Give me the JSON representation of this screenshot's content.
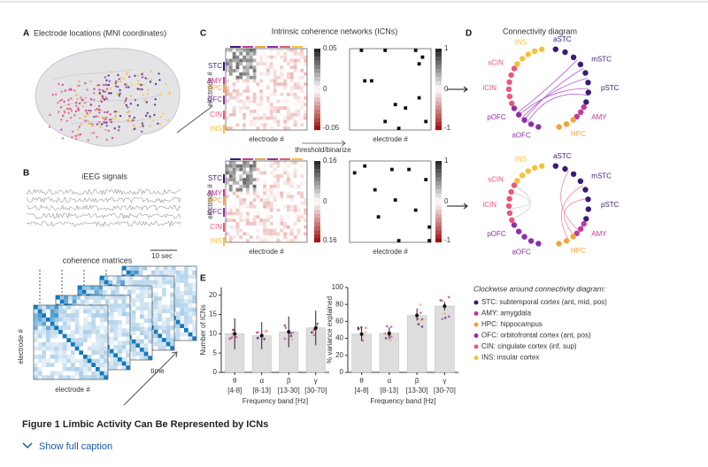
{
  "figure": {
    "panels": {
      "A": {
        "label": "A",
        "title": "Electrode locations (MNI coordinates)"
      },
      "B": {
        "label": "B",
        "title": "iEEG signals",
        "scale": "10 sec",
        "subtitle": "coherence matrices",
        "xlabel": "electrode #",
        "ylabel": "electrode #",
        "time": "time"
      },
      "C": {
        "label": "C",
        "title": "Intrinsic coherence networks (ICNs)",
        "regions": [
          "STC",
          "AMY",
          "HPC",
          "OFC",
          "CIN",
          "INS"
        ],
        "ylabel": "electrode #",
        "xlabel": "electrode #",
        "arrow_label": "threshold/binarize",
        "colorbar_top": [
          "0.05",
          "0",
          "-0.05"
        ],
        "colorbar_bin": [
          "1",
          "0",
          "-1"
        ],
        "colorbar_bottom": [
          "0.16",
          "0",
          "0.16"
        ]
      },
      "D": {
        "label": "D",
        "title": "Connectivity diagram",
        "nodes": [
          "aSTC",
          "mSTC",
          "pSTC",
          "AMY",
          "HPC",
          "aOFC",
          "pOFC",
          "iCIN",
          "sCIN",
          "INS"
        ]
      },
      "E": {
        "label": "E",
        "legend_title": "Clockwise around connectivity diagram:",
        "legend": [
          {
            "text": "STC: subtemporal cortex (ant, mid, pos)",
            "color": "#3b1a78"
          },
          {
            "text": "AMY: amygdala",
            "color": "#c2399b"
          },
          {
            "text": "HPC: hippocampus",
            "color": "#f2a33a"
          },
          {
            "text": "OFC: orbitofrontal cortex (ant, pos)",
            "color": "#8e2fa8"
          },
          {
            "text": "CIN: cingulate cortex (inf, sup)",
            "color": "#e8587a"
          },
          {
            "text": "INS: insular cortex",
            "color": "#f7c03a"
          }
        ]
      }
    },
    "caption": {
      "title": "Figure 1 Limbic Activity Can Be Represented by ICNs",
      "toggle": "Show full caption"
    }
  },
  "chart_data": [
    {
      "type": "bar",
      "ylabel": "Number of ICNs",
      "xlabel": "Frequency band [Hz]",
      "categories": [
        "θ",
        "α",
        "β",
        "γ"
      ],
      "category_sublabels": [
        "[4-8]",
        "[8-13]",
        "[13-30]",
        "[30-70]"
      ],
      "values": [
        10,
        9.5,
        10.5,
        11.5
      ],
      "errors": [
        4,
        3.5,
        4,
        4.5
      ],
      "color": "#dddddd",
      "ylim": [
        0,
        22
      ],
      "yticks": [
        0,
        5,
        10,
        15,
        20
      ]
    },
    {
      "type": "bar",
      "ylabel": "% variance explained",
      "xlabel": "Frequency band [Hz]",
      "categories": [
        "θ",
        "α",
        "β",
        "γ"
      ],
      "category_sublabels": [
        "[4-8]",
        "[8-13]",
        "[13-30]",
        "[30-70]"
      ],
      "values": [
        45,
        46,
        67,
        78
      ],
      "errors": [
        8,
        7,
        6,
        5
      ],
      "color": "#dddddd",
      "ylim": [
        0,
        100
      ],
      "yticks": [
        0,
        20,
        40,
        60,
        80,
        100
      ]
    }
  ]
}
